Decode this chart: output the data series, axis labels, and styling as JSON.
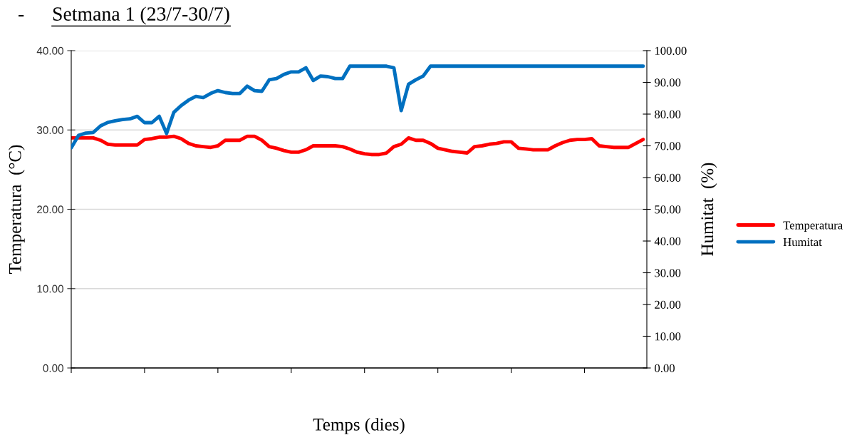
{
  "chart_data": {
    "type": "line",
    "title": "Setmana 1 (23/7-30/7)",
    "xlabel": "Temps (dies)",
    "ylabel": "Temperatura  (°C)",
    "y2label": "Humitat  (%)",
    "annotations": [
      "-"
    ],
    "categories": [
      null,
      null,
      null,
      null,
      null,
      null,
      null,
      null,
      null,
      null,
      null,
      null,
      null,
      null,
      null,
      null,
      null,
      null,
      null,
      null,
      null,
      null,
      null,
      null,
      null,
      null,
      null,
      null,
      null,
      null,
      null,
      null,
      null,
      null,
      null,
      null,
      null,
      null,
      null,
      null,
      null,
      null,
      null,
      null,
      null,
      null,
      null,
      null,
      null,
      null,
      null,
      null,
      null,
      null,
      null,
      null,
      null,
      null,
      null,
      null,
      null,
      null,
      null,
      null,
      null,
      null,
      null,
      null,
      null,
      null,
      null,
      null,
      null,
      null,
      null,
      null,
      null,
      null,
      null
    ],
    "ylim": [
      0,
      40
    ],
    "yticks": [
      {
        "value": 0,
        "label": "0.00"
      },
      {
        "value": 10,
        "label": "10.00"
      },
      {
        "value": 20,
        "label": "20.00"
      },
      {
        "value": 30,
        "label": "30.00"
      },
      {
        "value": 40,
        "label": "40.00"
      }
    ],
    "y2lim": [
      0,
      100
    ],
    "y2ticks": [
      {
        "value": 0,
        "label": "0.00"
      },
      {
        "value": 10,
        "label": "10.00"
      },
      {
        "value": 20,
        "label": "20.00"
      },
      {
        "value": 30,
        "label": "30.00"
      },
      {
        "value": 40,
        "label": "40.00"
      },
      {
        "value": 50,
        "label": "50.00"
      },
      {
        "value": 60,
        "label": "60.00"
      },
      {
        "value": 70,
        "label": "70.00"
      },
      {
        "value": 80,
        "label": "80.00"
      },
      {
        "value": 90,
        "label": "90.00"
      },
      {
        "value": 100,
        "label": "100.00"
      }
    ],
    "grid": "y",
    "legend": "right",
    "marker": "none",
    "line_style": "solid",
    "series": [
      {
        "name": "Temperatura",
        "color": "#ff0000",
        "values": [
          29.0,
          29.0,
          29.0,
          29.0,
          28.7,
          28.2,
          28.1,
          28.1,
          28.1,
          28.1,
          28.8,
          28.9,
          29.1,
          29.1,
          29.2,
          28.9,
          28.3,
          28.0,
          27.9,
          27.8,
          28.0,
          28.7,
          28.7,
          28.7,
          29.2,
          29.2,
          28.7,
          27.9,
          27.7,
          27.4,
          27.2,
          27.2,
          27.5,
          28.0,
          28.0,
          28.0,
          28.0,
          27.9,
          27.6,
          27.2,
          27.0,
          26.9,
          26.9,
          27.1,
          27.9,
          28.2,
          29.0,
          28.7,
          28.7,
          28.3,
          27.7,
          27.5,
          27.3,
          27.2,
          27.1,
          27.9,
          28.0,
          28.2,
          28.3,
          28.5,
          28.5,
          27.7,
          27.6,
          27.5,
          27.5,
          27.5,
          28.0,
          28.4,
          28.7,
          28.8,
          28.8,
          28.9,
          28.0,
          27.9,
          27.8,
          27.8,
          27.8,
          28.3,
          28.8
        ]
      },
      {
        "name": "Humitat",
        "color": "#0070c0",
        "axis": "y2",
        "values": [
          69.4,
          73.3,
          74.0,
          74.2,
          76.3,
          77.4,
          77.9,
          78.3,
          78.5,
          79.3,
          77.3,
          77.3,
          79.3,
          73.9,
          80.6,
          82.7,
          84.4,
          85.6,
          85.2,
          86.5,
          87.4,
          86.8,
          86.5,
          86.5,
          88.8,
          87.4,
          87.2,
          90.8,
          91.2,
          92.5,
          93.3,
          93.3,
          94.6,
          90.6,
          92.0,
          91.8,
          91.2,
          91.2,
          95.1,
          95.1,
          95.1,
          95.1,
          95.1,
          95.1,
          94.6,
          81.1,
          89.4,
          90.8,
          92.0,
          95.1,
          95.1,
          95.1,
          95.1,
          95.1,
          95.1,
          95.1,
          95.1,
          95.1,
          95.1,
          95.1,
          95.1,
          95.1,
          95.1,
          95.1,
          95.1,
          95.1,
          95.1,
          95.1,
          95.1,
          95.1,
          95.1,
          95.1,
          95.1,
          95.1,
          95.1,
          95.1,
          95.1,
          95.1,
          95.1
        ]
      }
    ]
  }
}
